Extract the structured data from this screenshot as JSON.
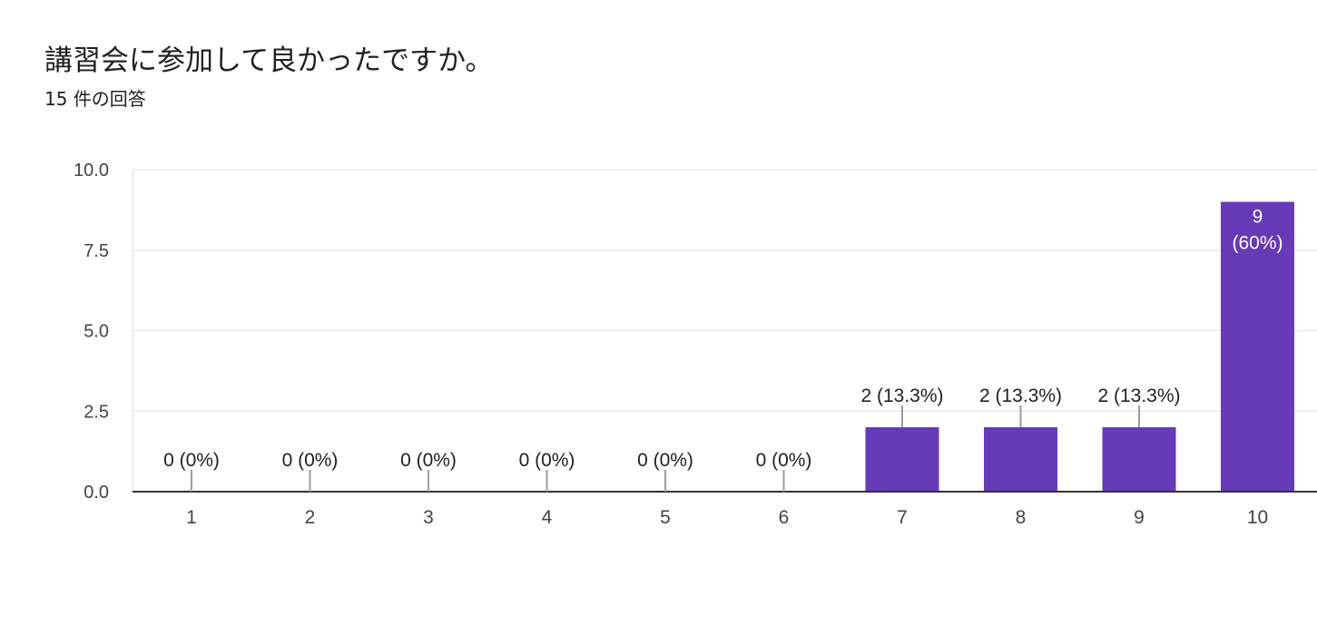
{
  "question": {
    "title": "講習会に参加して良かったですか。",
    "response_count": "15 件の回答"
  },
  "colors": {
    "bar": "#673ab7",
    "gridline": "#ececec",
    "baseline": "#333333",
    "leader_line": "#9e9e9e",
    "text": "#202124",
    "inside_label": "#ffffff"
  },
  "chart_data": {
    "type": "bar",
    "title": "",
    "xlabel": "",
    "ylabel": "",
    "categories": [
      "1",
      "2",
      "3",
      "4",
      "5",
      "6",
      "7",
      "8",
      "9",
      "10"
    ],
    "values": [
      0,
      0,
      0,
      0,
      0,
      0,
      2,
      2,
      2,
      9
    ],
    "data_labels": [
      "0 (0%)",
      "0 (0%)",
      "0 (0%)",
      "0 (0%)",
      "0 (0%)",
      "0 (0%)",
      "2 (13.3%)",
      "2 (13.3%)",
      "2 (13.3%)",
      "9 (60%)"
    ],
    "ylim": [
      0,
      10
    ],
    "yticks": [
      0,
      2.5,
      5,
      7.5,
      10
    ],
    "ytick_labels": [
      "0.0",
      "2.5",
      "5.0",
      "7.5",
      "10.0"
    ],
    "grid": true,
    "legend": "none"
  }
}
